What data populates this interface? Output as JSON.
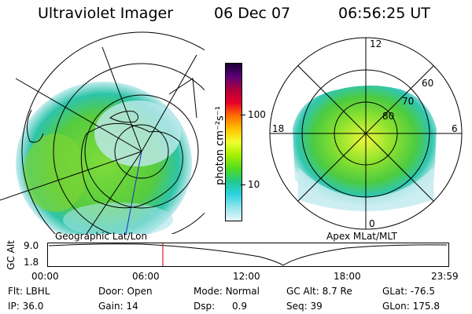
{
  "header": {
    "instrument": "Ultraviolet Imager",
    "date": "06 Dec 07",
    "time": "06:56:25 UT"
  },
  "left_panel": {
    "caption": "Geographic Lat/Lon"
  },
  "right_panel": {
    "caption": "Apex MLat/MLT",
    "clock_labels": {
      "top": "12",
      "left": "18",
      "right": "6",
      "bottom": "0"
    },
    "ring_labels": [
      "60",
      "70",
      "80"
    ]
  },
  "colorbar": {
    "unit_label": "photon cm⁻²s⁻¹",
    "ticks": [
      "100",
      "10"
    ],
    "colors": [
      "#1a0033",
      "#5a0077",
      "#b0003a",
      "#e80028",
      "#ff6a00",
      "#ffc400",
      "#f0ff30",
      "#a8f000",
      "#50dc20",
      "#22c88c",
      "#2ad2e0",
      "#96e6ec",
      "#e6f6f8"
    ]
  },
  "timeline": {
    "ylabel": "GC Alt",
    "yticks": [
      "9.0",
      "1.8"
    ],
    "xticks": [
      "00:00",
      "06:00",
      "12:00",
      "18:00",
      "23:59"
    ],
    "marker_color": "#d81e1e"
  },
  "status": {
    "filter": {
      "label": "Flt:",
      "value": "LBHL"
    },
    "ip": {
      "label": "IP:",
      "value": "36.0"
    },
    "door": {
      "label": "Door:",
      "value": "Open"
    },
    "gain": {
      "label": "Gain:",
      "value": "14"
    },
    "mode": {
      "label": "Mode:",
      "value": "Normal"
    },
    "dsp": {
      "label": "Dsp:",
      "value": "0.9"
    },
    "gc_alt": {
      "label": "GC Alt:",
      "value": "8.7 Re"
    },
    "seq": {
      "label": "Seq:",
      "value": "39"
    },
    "glat": {
      "label": "GLat:",
      "value": "-76.5"
    },
    "glon": {
      "label": "GLon:",
      "value": "175.8"
    }
  }
}
